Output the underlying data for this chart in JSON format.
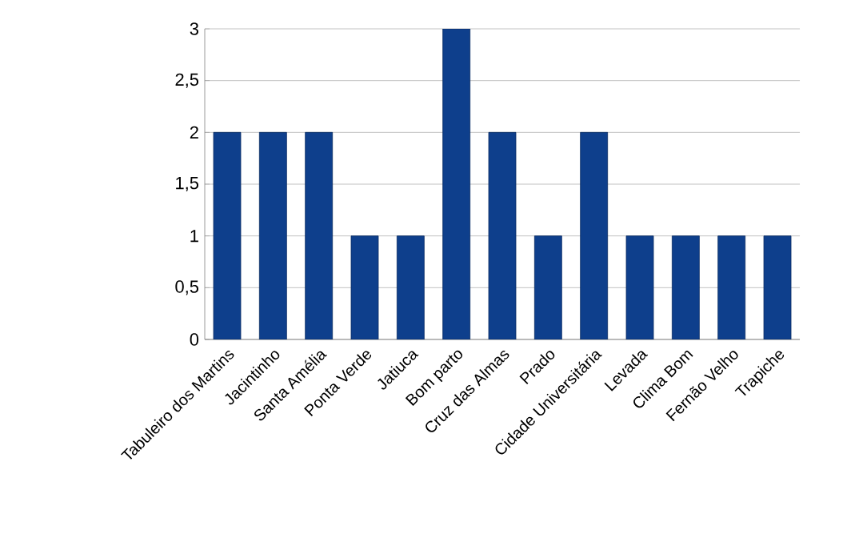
{
  "chart_data": {
    "type": "bar",
    "categories": [
      "Tabuleiro dos Martins",
      "Jacintinho",
      "Santa Amélia",
      "Ponta Verde",
      "Jatiuca",
      "Bom parto",
      "Cruz das Almas",
      "Prado",
      "Cidade Universitária",
      "Levada",
      "Clima Bom",
      "Fernão Velho",
      "Trapiche"
    ],
    "values": [
      2,
      2,
      2,
      1,
      1,
      3,
      2,
      1,
      2,
      1,
      1,
      1,
      1
    ],
    "color": "#0e3f8c",
    "ylim": [
      0,
      3
    ],
    "yticks": [
      0,
      {
        "value": 0.5,
        "label": "0,5"
      },
      1,
      {
        "value": 1.5,
        "label": "1,5"
      },
      2,
      {
        "value": 2.5,
        "label": "2,5"
      },
      3
    ],
    "grid": "y"
  }
}
